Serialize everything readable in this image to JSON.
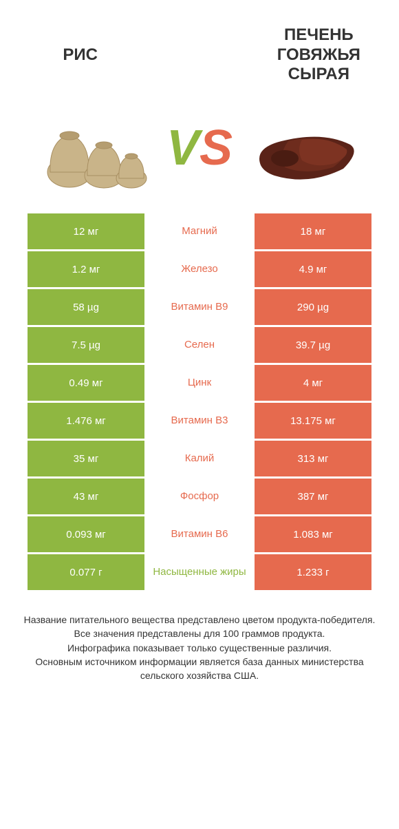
{
  "colors": {
    "green": "#8fb741",
    "orange": "#e66a4e",
    "white": "#ffffff",
    "text": "#333333"
  },
  "header": {
    "left_title": "РИС",
    "right_title": "ПЕЧЕНЬ ГОВЯЖЬЯ СЫРАЯ",
    "vs_v": "V",
    "vs_s": "S"
  },
  "rows": [
    {
      "left": "12 мг",
      "label": "Магний",
      "right": "18 мг",
      "winner": "right"
    },
    {
      "left": "1.2 мг",
      "label": "Железо",
      "right": "4.9 мг",
      "winner": "right"
    },
    {
      "left": "58 µg",
      "label": "Витамин B9",
      "right": "290 µg",
      "winner": "right"
    },
    {
      "left": "7.5 µg",
      "label": "Селен",
      "right": "39.7 µg",
      "winner": "right"
    },
    {
      "left": "0.49 мг",
      "label": "Цинк",
      "right": "4 мг",
      "winner": "right"
    },
    {
      "left": "1.476 мг",
      "label": "Витамин B3",
      "right": "13.175 мг",
      "winner": "right"
    },
    {
      "left": "35 мг",
      "label": "Калий",
      "right": "313 мг",
      "winner": "right"
    },
    {
      "left": "43 мг",
      "label": "Фосфор",
      "right": "387 мг",
      "winner": "right"
    },
    {
      "left": "0.093 мг",
      "label": "Витамин B6",
      "right": "1.083 мг",
      "winner": "right"
    },
    {
      "left": "0.077 г",
      "label": "Насыщенные жиры",
      "right": "1.233 г",
      "winner": "left"
    }
  ],
  "footer": {
    "line1": "Название питательного вещества представлено цветом продукта-победителя.",
    "line2": "Все значения представлены для 100 граммов продукта.",
    "line3": "Инфографика показывает только существенные различия.",
    "line4": "Основным источником информации является база данных министерства сельского хозяйства США."
  }
}
